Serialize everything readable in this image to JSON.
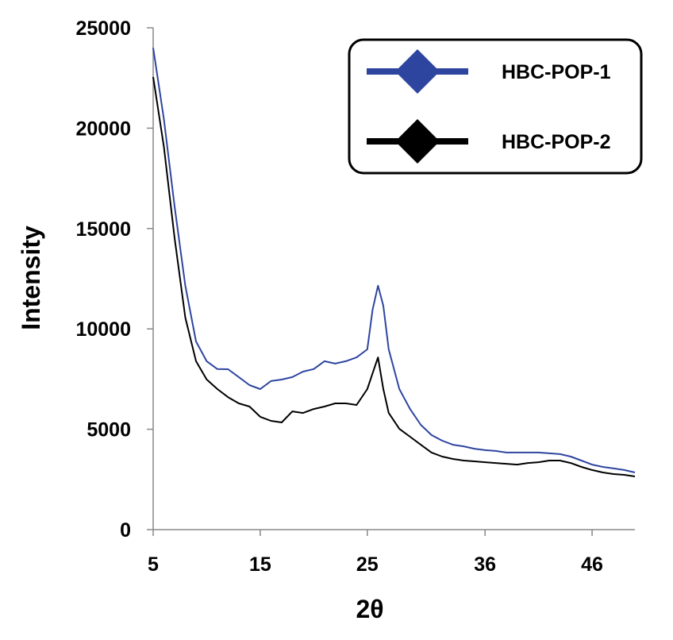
{
  "chart_data": {
    "type": "line",
    "x_label": "2θ",
    "y_label": "Intensity",
    "x": [
      5,
      6,
      7,
      8,
      9,
      10,
      11,
      12,
      13,
      14,
      15,
      16,
      17,
      18,
      19,
      20,
      21,
      22,
      23,
      24,
      25,
      25.5,
      26,
      26.5,
      27,
      28,
      29,
      30,
      31,
      32,
      33,
      34,
      35,
      36,
      37,
      38,
      39,
      40,
      41,
      42,
      43,
      44,
      45,
      46,
      47,
      48,
      49,
      50
    ],
    "series": [
      {
        "name": "HBC-POP-1",
        "color": "#2e45a0",
        "values": [
          24000,
          20450,
          16100,
          12150,
          9375,
          8390,
          8000,
          7990,
          7600,
          7200,
          7000,
          7400,
          7475,
          7600,
          7870,
          8000,
          8390,
          8270,
          8390,
          8580,
          8980,
          10960,
          12150,
          11150,
          8980,
          7000,
          6010,
          5220,
          4710,
          4430,
          4230,
          4150,
          4030,
          3960,
          3920,
          3840,
          3840,
          3840,
          3840,
          3800,
          3760,
          3640,
          3440,
          3240,
          3125,
          3050,
          2970,
          2850
        ]
      },
      {
        "name": "HBC-POP-2",
        "color": "#000000",
        "values": [
          22550,
          19070,
          14520,
          10560,
          8390,
          7480,
          7000,
          6600,
          6290,
          6130,
          5620,
          5420,
          5340,
          5890,
          5810,
          6010,
          6130,
          6290,
          6290,
          6210,
          7000,
          7790,
          8580,
          7000,
          5810,
          5020,
          4630,
          4230,
          3840,
          3640,
          3520,
          3440,
          3400,
          3360,
          3320,
          3280,
          3240,
          3320,
          3360,
          3440,
          3440,
          3320,
          3125,
          2970,
          2850,
          2770,
          2730,
          2650
        ]
      }
    ],
    "xlim": [
      5,
      50
    ],
    "xticks": [
      5,
      15,
      25,
      36,
      46
    ],
    "ylim": [
      0,
      25000
    ],
    "yticks": [
      0,
      5000,
      10000,
      15000,
      20000,
      25000
    ],
    "grid": false,
    "legend": "top-right"
  }
}
